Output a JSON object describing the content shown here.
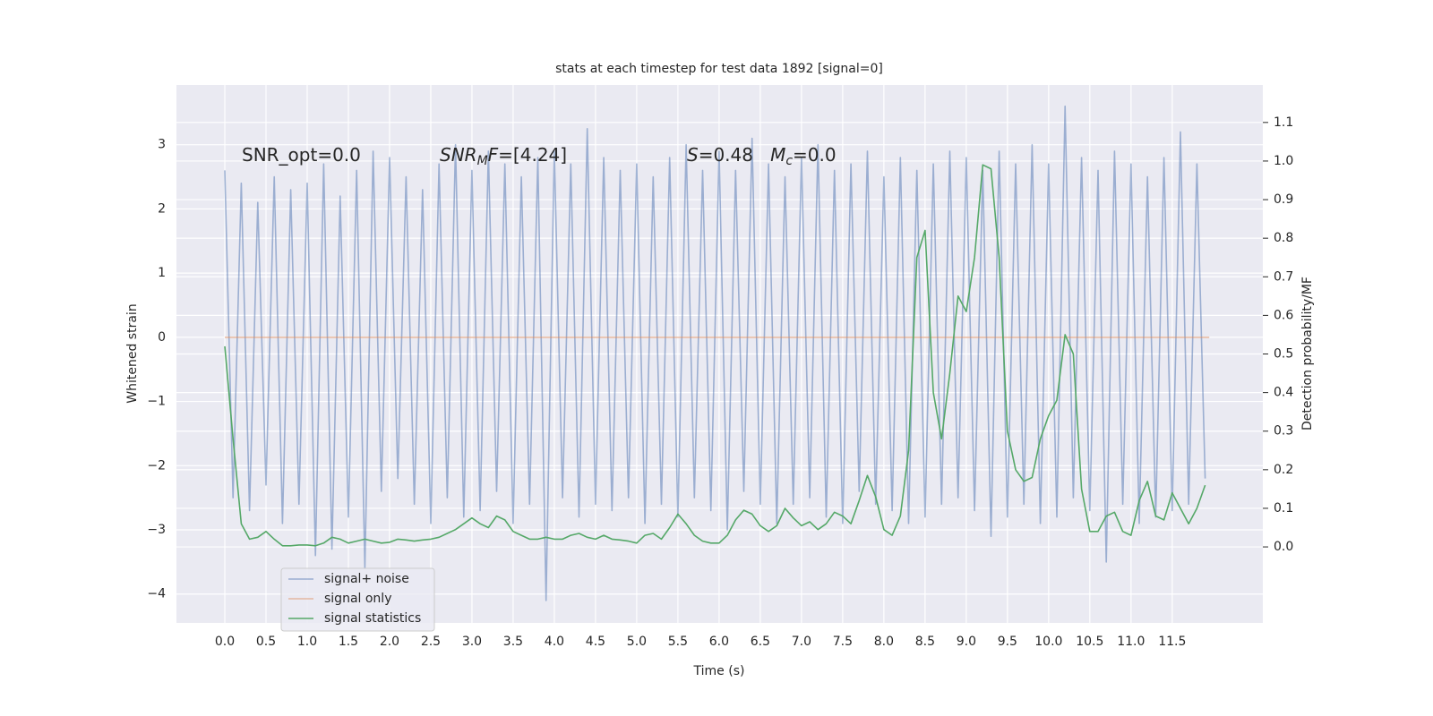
{
  "chart_data": {
    "type": "line",
    "title": "stats at each timestep for test data 1892 [signal=0]",
    "xlabel": "Time (s)",
    "ylabel": "Whitened strain",
    "y2label": "Detection probability/MF",
    "annotations": [
      [
        {
          "text": "SNR_opt=0.0"
        }
      ],
      [
        {
          "text": "SNR",
          "style": "italic"
        },
        {
          "text": "M",
          "style": "italic-sub"
        },
        {
          "text": "F",
          "style": "italic"
        },
        {
          "text": "=[4.24]"
        }
      ],
      [
        {
          "text": "S",
          "style": "italic"
        },
        {
          "text": "=0.48   "
        },
        {
          "text": "M",
          "style": "italic"
        },
        {
          "text": "c",
          "style": "italic-sub"
        },
        {
          "text": "=0.0"
        }
      ]
    ],
    "xlim": [
      -0.587,
      12.6
    ],
    "ylim": [
      -4.45,
      3.93
    ],
    "y2lim": [
      -0.197,
      1.197
    ],
    "xticks": [
      {
        "value": 0,
        "label": "0.0"
      },
      0.5,
      {
        "value": 1,
        "label": "1.0"
      },
      1.5,
      {
        "value": 2,
        "label": "2.0"
      },
      2.5,
      {
        "value": 3,
        "label": "3.0"
      },
      3.5,
      {
        "value": 4,
        "label": "4.0"
      },
      4.5,
      {
        "value": 5,
        "label": "5.0"
      },
      5.5,
      {
        "value": 6,
        "label": "6.0"
      },
      6.5,
      {
        "value": 7,
        "label": "7.0"
      },
      7.5,
      {
        "value": 8,
        "label": "8.0"
      },
      8.5,
      {
        "value": 9,
        "label": "9.0"
      },
      9.5,
      {
        "value": 10,
        "label": "10.0"
      },
      10.5,
      {
        "value": 11,
        "label": "11.0"
      },
      11.5
    ],
    "yticks": [
      {
        "value": -4,
        "label": "−4"
      },
      {
        "value": -3,
        "label": "−3"
      },
      {
        "value": -2,
        "label": "−2"
      },
      {
        "value": -1,
        "label": "−1"
      },
      0,
      1,
      2,
      3
    ],
    "y2ticks": [
      {
        "value": 0,
        "label": "0.0"
      },
      0.1,
      0.2,
      0.3,
      0.4,
      0.5,
      0.6,
      0.7,
      0.8,
      0.9,
      {
        "value": 1,
        "label": "1.0"
      },
      1.1
    ],
    "grid": true,
    "legend": "lower left",
    "series": [
      {
        "name": "signal+ noise",
        "color": "#4c72b0",
        "opacity": 0.5,
        "x": [
          0,
          0.1,
          0.2,
          0.3,
          0.4,
          0.5,
          0.6,
          0.7,
          0.8,
          0.9,
          1,
          1.1,
          1.2,
          1.3,
          1.4,
          1.5,
          1.6,
          1.7,
          1.8,
          1.9,
          2,
          2.1,
          2.2,
          2.3,
          2.4,
          2.5,
          2.6,
          2.7,
          2.8,
          2.9,
          3,
          3.1,
          3.2,
          3.3,
          3.4,
          3.5,
          3.6,
          3.7,
          3.8,
          3.9,
          4,
          4.1,
          4.2,
          4.3,
          4.4,
          4.5,
          4.6,
          4.7,
          4.8,
          4.9,
          5,
          5.1,
          5.2,
          5.3,
          5.4,
          5.5,
          5.6,
          5.7,
          5.8,
          5.9,
          6,
          6.1,
          6.2,
          6.3,
          6.4,
          6.5,
          6.6,
          6.7,
          6.8,
          6.9,
          7,
          7.1,
          7.2,
          7.3,
          7.4,
          7.5,
          7.6,
          7.7,
          7.8,
          7.9,
          8,
          8.1,
          8.2,
          8.3,
          8.4,
          8.5,
          8.6,
          8.7,
          8.8,
          8.9,
          9,
          9.1,
          9.2,
          9.3,
          9.4,
          9.5,
          9.6,
          9.7,
          9.8,
          9.9,
          10,
          10.1,
          10.2,
          10.3,
          10.4,
          10.5,
          10.6,
          10.7,
          10.8,
          10.9,
          11,
          11.1,
          11.2,
          11.3,
          11.4,
          11.5,
          11.6,
          11.7,
          11.8,
          11.9
        ],
        "values": [
          2.6,
          -2.5,
          2.4,
          -2.7,
          2.1,
          -2.3,
          2.5,
          -2.9,
          2.3,
          -2.6,
          2.4,
          -3.4,
          2.7,
          -3.3,
          2.2,
          -2.8,
          2.6,
          -3.6,
          2.9,
          -2.4,
          2.8,
          -2.2,
          2.5,
          -2.6,
          2.3,
          -2.9,
          2.7,
          -2.5,
          3.0,
          -2.8,
          2.6,
          -2.7,
          2.9,
          -2.4,
          2.7,
          -2.9,
          2.5,
          -2.6,
          2.8,
          -4.1,
          2.9,
          -2.5,
          2.7,
          -2.8,
          3.25,
          -2.6,
          2.8,
          -2.7,
          2.6,
          -2.5,
          2.7,
          -2.9,
          2.5,
          -2.6,
          2.8,
          -2.8,
          3.0,
          -2.5,
          2.6,
          -2.7,
          2.9,
          -3.0,
          2.6,
          -2.4,
          3.1,
          -2.6,
          2.7,
          -2.9,
          2.5,
          -2.6,
          2.8,
          -2.5,
          3.0,
          -2.8,
          2.6,
          -2.9,
          2.7,
          -2.4,
          2.9,
          -2.6,
          2.5,
          -2.7,
          2.8,
          -2.9,
          2.6,
          -2.8,
          2.7,
          -2.6,
          2.9,
          -2.5,
          2.8,
          -2.7,
          2.6,
          -3.1,
          2.9,
          -2.8,
          2.7,
          -2.6,
          3.0,
          -2.9,
          2.7,
          -2.8,
          3.6,
          -2.5,
          2.8,
          -2.7,
          2.6,
          -3.5,
          2.9,
          -2.6,
          2.7,
          -2.9,
          2.5,
          -2.8,
          2.8,
          -2.7,
          3.2,
          -2.6,
          2.7,
          -2.2
        ]
      },
      {
        "name": "signal only",
        "color": "#dd8452",
        "opacity": 0.5,
        "x": [
          0,
          11.95
        ],
        "values": [
          0,
          0
        ]
      },
      {
        "name": "signal statistics",
        "color": "#55a868",
        "opacity": 1,
        "axis": "y2",
        "x": [
          0,
          0.1,
          0.2,
          0.3,
          0.4,
          0.5,
          0.6,
          0.7,
          0.8,
          0.9,
          1,
          1.1,
          1.2,
          1.3,
          1.4,
          1.5,
          1.6,
          1.7,
          1.8,
          1.9,
          2,
          2.1,
          2.2,
          2.3,
          2.4,
          2.5,
          2.6,
          2.7,
          2.8,
          2.9,
          3,
          3.1,
          3.2,
          3.3,
          3.4,
          3.5,
          3.6,
          3.7,
          3.8,
          3.9,
          4,
          4.1,
          4.2,
          4.3,
          4.4,
          4.5,
          4.6,
          4.7,
          4.8,
          4.9,
          5,
          5.1,
          5.2,
          5.3,
          5.4,
          5.5,
          5.6,
          5.7,
          5.8,
          5.9,
          6,
          6.1,
          6.2,
          6.3,
          6.4,
          6.5,
          6.6,
          6.7,
          6.8,
          6.9,
          7,
          7.1,
          7.2,
          7.3,
          7.4,
          7.5,
          7.6,
          7.7,
          7.8,
          7.9,
          8,
          8.1,
          8.2,
          8.3,
          8.4,
          8.5,
          8.6,
          8.7,
          8.8,
          8.9,
          9,
          9.1,
          9.2,
          9.3,
          9.4,
          9.5,
          9.6,
          9.7,
          9.8,
          9.9,
          10,
          10.1,
          10.2,
          10.3,
          10.4,
          10.5,
          10.6,
          10.7,
          10.8,
          10.9,
          11,
          11.1,
          11.2,
          11.3,
          11.4,
          11.5,
          11.6,
          11.7,
          11.8,
          11.9
        ],
        "values": [
          0.52,
          0.28,
          0.06,
          0.02,
          0.025,
          0.04,
          0.02,
          0.003,
          0.003,
          0.005,
          0.005,
          0.003,
          0.01,
          0.025,
          0.02,
          0.01,
          0.015,
          0.02,
          0.015,
          0.01,
          0.012,
          0.02,
          0.018,
          0.015,
          0.018,
          0.02,
          0.025,
          0.035,
          0.045,
          0.06,
          0.075,
          0.06,
          0.05,
          0.08,
          0.07,
          0.04,
          0.03,
          0.02,
          0.02,
          0.025,
          0.02,
          0.02,
          0.03,
          0.035,
          0.025,
          0.02,
          0.03,
          0.02,
          0.018,
          0.015,
          0.01,
          0.03,
          0.035,
          0.02,
          0.05,
          0.085,
          0.06,
          0.03,
          0.015,
          0.01,
          0.01,
          0.03,
          0.07,
          0.095,
          0.085,
          0.055,
          0.04,
          0.055,
          0.1,
          0.075,
          0.055,
          0.065,
          0.045,
          0.06,
          0.09,
          0.08,
          0.06,
          0.12,
          0.185,
          0.13,
          0.045,
          0.03,
          0.08,
          0.25,
          0.75,
          0.82,
          0.4,
          0.28,
          0.45,
          0.65,
          0.61,
          0.75,
          0.99,
          0.98,
          0.75,
          0.3,
          0.2,
          0.17,
          0.18,
          0.28,
          0.34,
          0.38,
          0.55,
          0.5,
          0.15,
          0.04,
          0.04,
          0.08,
          0.09,
          0.04,
          0.03,
          0.12,
          0.17,
          0.08,
          0.07,
          0.14,
          0.1,
          0.06,
          0.1,
          0.16
        ]
      }
    ]
  }
}
